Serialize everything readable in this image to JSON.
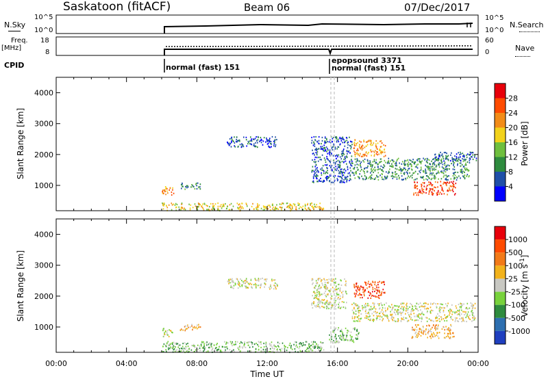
{
  "header": {
    "station": "Saskatoon (fitACF)",
    "beam": "Beam 06",
    "date": "07/Dec/2017"
  },
  "top_panels": {
    "nsky_label": "N.Sky",
    "nsky_ticks": [
      "10^5",
      "10^0"
    ],
    "nsearch_ticks": [
      "10^5",
      "10^0"
    ],
    "nsearch_label": "N.Search",
    "freq_label": "Freq.",
    "freq_unit": "[MHz]",
    "freq_ticks": [
      "18",
      "8"
    ],
    "nave_ticks": [
      "60",
      "0"
    ],
    "nave_label": "Nave",
    "cpid_label": "CPID",
    "cpid_entries": [
      {
        "name": "normal (fast) 151"
      },
      {
        "name": "epopsound 3371"
      },
      {
        "name": "normal (fast) 151"
      }
    ]
  },
  "chart_data": [
    {
      "type": "heatmap",
      "ylabel": "Slant Range [km]",
      "ylim": [
        180,
        4500
      ],
      "yticks": [
        "4000",
        "3000",
        "2000",
        "1000"
      ],
      "ytick_values": [
        4000,
        3000,
        2000,
        1000
      ],
      "colorbar": {
        "label": "Power [dB]",
        "ticks": [
          "28",
          "24",
          "20",
          "16",
          "12",
          "8",
          "4"
        ],
        "colors": [
          "#0000ff",
          "#1f4fa8",
          "#2e8b3e",
          "#6fbf3e",
          "#f2d21b",
          "#f28c18",
          "#ff4b00",
          "#e8000b"
        ]
      },
      "regions": [
        {
          "t0": 6.0,
          "t1": 15.2,
          "r0": 200,
          "r1": 450,
          "level": 4
        },
        {
          "t0": 6.0,
          "t1": 6.7,
          "r0": 700,
          "r1": 1000,
          "level": 5
        },
        {
          "t0": 7.0,
          "t1": 8.2,
          "r0": 900,
          "r1": 1100,
          "level": 2
        },
        {
          "t0": 9.7,
          "t1": 12.6,
          "r0": 2250,
          "r1": 2600,
          "level": 1
        },
        {
          "t0": 14.5,
          "t1": 16.8,
          "r0": 1100,
          "r1": 2600,
          "level": 1
        },
        {
          "t0": 16.8,
          "t1": 23.5,
          "r0": 1200,
          "r1": 1900,
          "level": 2
        },
        {
          "t0": 16.9,
          "t1": 18.7,
          "r0": 1950,
          "r1": 2500,
          "level": 5
        },
        {
          "t0": 20.3,
          "t1": 22.7,
          "r0": 700,
          "r1": 1150,
          "level": 6
        },
        {
          "t0": 21.5,
          "t1": 23.9,
          "r0": 1800,
          "r1": 2100,
          "level": 1
        }
      ]
    },
    {
      "type": "heatmap",
      "ylabel": "Slant Range [km]",
      "ylim": [
        180,
        4500
      ],
      "yticks": [
        "4000",
        "3000",
        "2000",
        "1000"
      ],
      "ytick_values": [
        4000,
        3000,
        2000,
        1000
      ],
      "colorbar": {
        "label": "Velocity [m s^-1]",
        "ticks": [
          "1000",
          "500",
          "100",
          "25",
          "-25",
          "-100",
          "-500",
          "-1000"
        ],
        "colors": [
          "#1f3fbf",
          "#2d6fb0",
          "#2e8b3e",
          "#78d23c",
          "#c8c8c2",
          "#f2b21b",
          "#f27a18",
          "#ff4b00",
          "#e8000b"
        ]
      },
      "regions": [
        {
          "t0": 6.0,
          "t1": 15.2,
          "r0": 200,
          "r1": 550,
          "level": 3
        },
        {
          "t0": 6.0,
          "t1": 6.6,
          "r0": 700,
          "r1": 1000,
          "level": 4
        },
        {
          "t0": 7.0,
          "t1": 8.2,
          "r0": 900,
          "r1": 1100,
          "level": 5
        },
        {
          "t0": 9.7,
          "t1": 12.6,
          "r0": 2250,
          "r1": 2600,
          "level": 4
        },
        {
          "t0": 14.5,
          "t1": 16.5,
          "r0": 1600,
          "r1": 2600,
          "level": 4
        },
        {
          "t0": 16.8,
          "t1": 23.8,
          "r0": 1200,
          "r1": 1800,
          "level": 4
        },
        {
          "t0": 16.9,
          "t1": 18.7,
          "r0": 1950,
          "r1": 2500,
          "level": 7
        },
        {
          "t0": 20.2,
          "t1": 22.6,
          "r0": 650,
          "r1": 1100,
          "level": 5
        },
        {
          "t0": 15.5,
          "t1": 17.2,
          "r0": 500,
          "r1": 1000,
          "level": 3
        }
      ]
    }
  ],
  "xaxis": {
    "ticks": [
      "00:00",
      "04:00",
      "08:00",
      "12:00",
      "16:00",
      "20:00",
      "00:00"
    ],
    "tick_values": [
      0,
      4,
      8,
      12,
      16,
      20,
      24
    ],
    "label": "Time UT",
    "xlim": [
      0,
      24
    ]
  }
}
